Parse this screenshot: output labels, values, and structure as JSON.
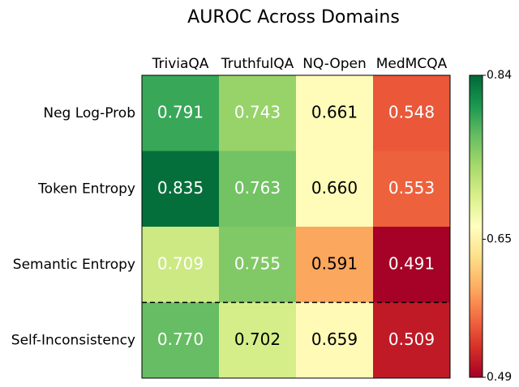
{
  "chart_data": {
    "type": "heatmap",
    "title": "AUROC Across Domains",
    "x_categories": [
      "TriviaQA",
      "TruthfulQA",
      "NQ-Open",
      "MedMCQA"
    ],
    "y_categories": [
      "Neg Log-Prob",
      "Token Entropy",
      "Semantic Entropy",
      "Self-Inconsistency"
    ],
    "values": [
      [
        0.791,
        0.743,
        0.661,
        0.548
      ],
      [
        0.835,
        0.763,
        0.66,
        0.553
      ],
      [
        0.709,
        0.755,
        0.591,
        0.491
      ],
      [
        0.77,
        0.702,
        0.659,
        0.509
      ]
    ],
    "value_labels": [
      [
        "0.791",
        "0.743",
        "0.661",
        "0.548"
      ],
      [
        "0.835",
        "0.763",
        "0.660",
        "0.553"
      ],
      [
        "0.709",
        "0.755",
        "0.591",
        "0.491"
      ],
      [
        "0.770",
        "0.702",
        "0.659",
        "0.509"
      ]
    ],
    "colormap": "RdYlGn",
    "clim": [
      0.49,
      0.84
    ],
    "cticks": [
      0.49,
      0.65,
      0.84
    ]
  }
}
